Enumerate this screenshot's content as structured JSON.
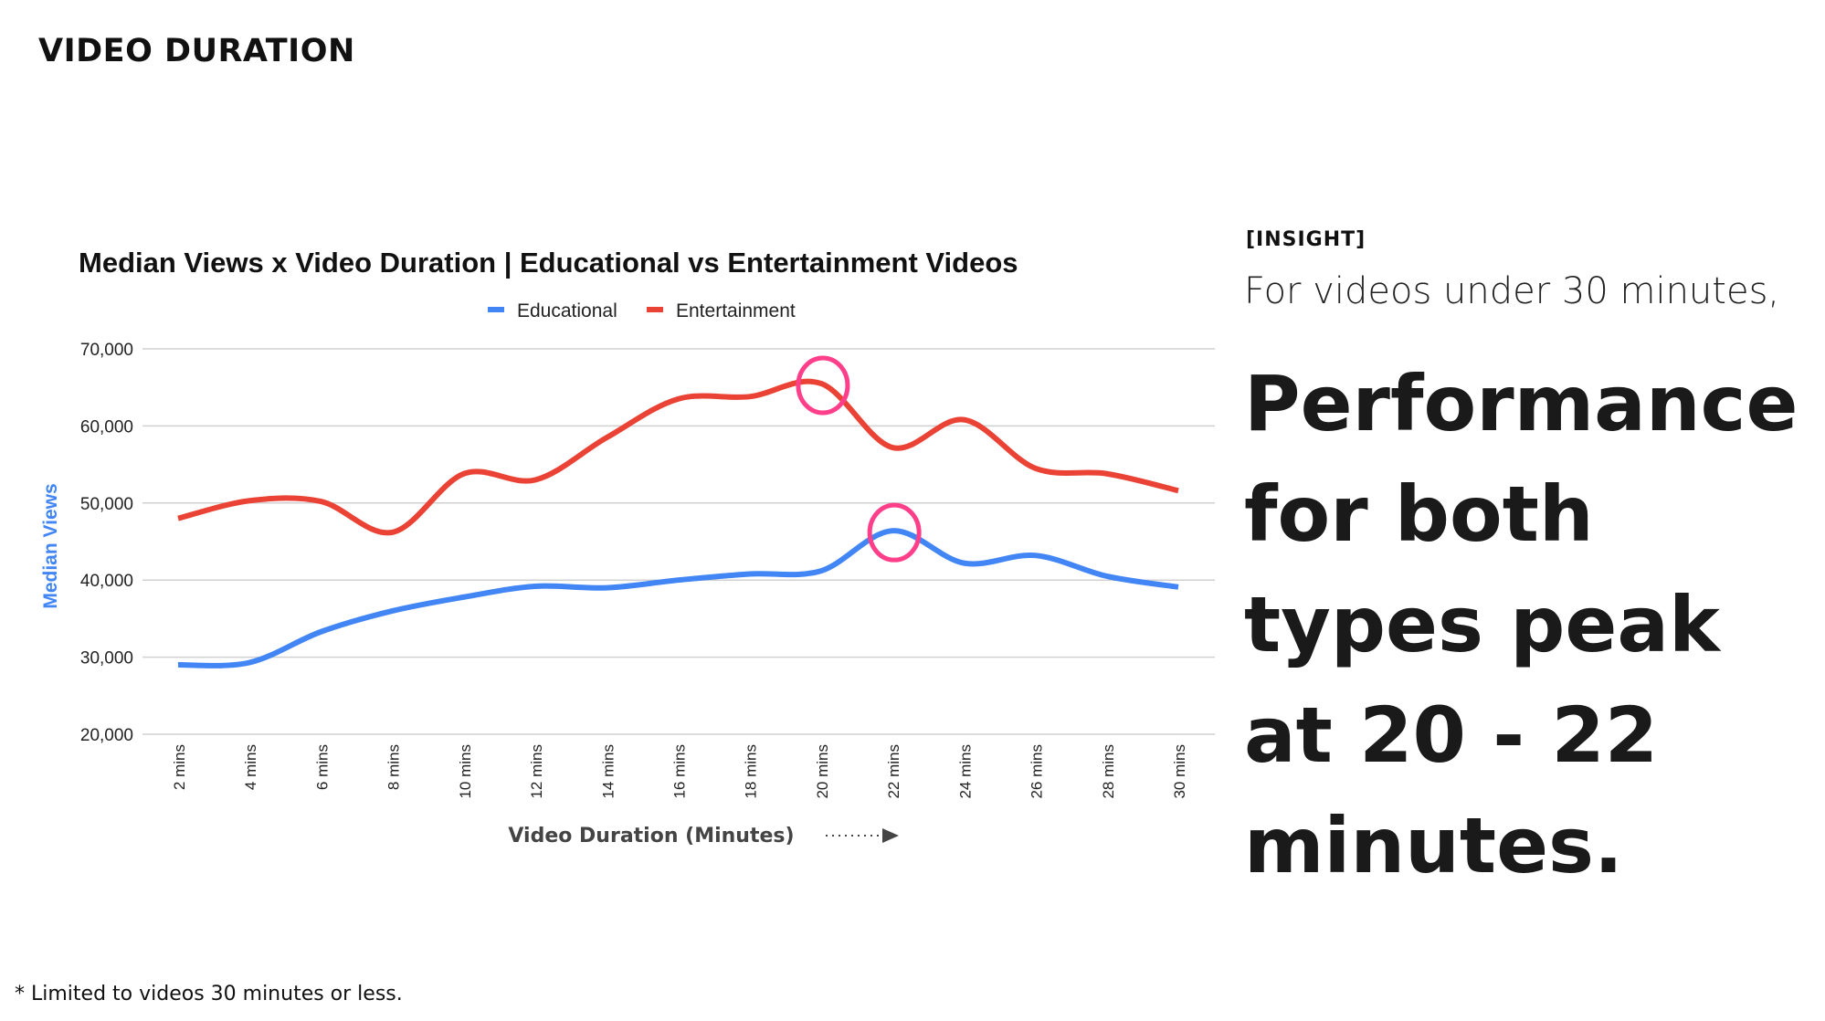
{
  "page": {
    "title": "VIDEO DURATION",
    "footnote": "* Limited to videos 30 minutes or less."
  },
  "insight": {
    "tag": "[INSIGHT]",
    "lead": "For videos under 30 minutes,",
    "body": "Performance for both types peak at 20 - 22 minutes."
  },
  "chart_data": {
    "type": "line",
    "title": "Median Views x Video Duration | Educational vs Entertainment Videos",
    "xlabel": "Video Duration (Minutes)",
    "ylabel": "Median Views",
    "categories": [
      "2 mins",
      "4 mins",
      "6 mins",
      "8 mins",
      "10 mins",
      "12 mins",
      "14 mins",
      "16 mins",
      "18 mins",
      "20 mins",
      "22 mins",
      "24 mins",
      "26 mins",
      "28 mins",
      "30 mins"
    ],
    "ylim": [
      20000,
      70000
    ],
    "yticks": [
      20000,
      30000,
      40000,
      50000,
      60000,
      70000
    ],
    "ytick_labels": [
      "20,000",
      "30,000",
      "40,000",
      "50,000",
      "60,000",
      "70,000"
    ],
    "grid": true,
    "legend_position": "top-center",
    "series": [
      {
        "name": "Educational",
        "color": "#4285f4",
        "values": [
          29000,
          29300,
          33300,
          36000,
          37800,
          39200,
          39000,
          40000,
          40800,
          41200,
          46400,
          42200,
          43200,
          40500,
          39100
        ]
      },
      {
        "name": "Entertainment",
        "color": "#ea4335",
        "values": [
          48000,
          50300,
          50200,
          46200,
          53800,
          53000,
          58500,
          63500,
          63800,
          65500,
          57200,
          60800,
          54500,
          53800,
          51600
        ]
      }
    ],
    "annotations": [
      {
        "type": "circle",
        "series": "Entertainment",
        "category": "20 mins",
        "color": "#ff3f8a"
      },
      {
        "type": "circle",
        "series": "Educational",
        "category": "22 mins",
        "color": "#ff3f8a"
      }
    ]
  }
}
